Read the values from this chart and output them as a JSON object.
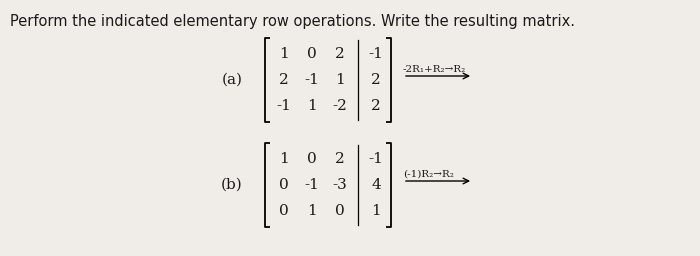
{
  "title": "Perform the indicated elementary row operations. Write the resulting matrix.",
  "title_fontsize": 10.5,
  "bg_color": "#f0ede8",
  "text_color": "#1a1a1a",
  "matrix_a": {
    "main": [
      [
        "1",
        "0",
        "2"
      ],
      [
        "2",
        "-1",
        "1"
      ],
      [
        "-1",
        "1",
        "-2"
      ]
    ],
    "aug": [
      [
        "-1"
      ],
      [
        "2"
      ],
      [
        "2"
      ]
    ],
    "label": "(a)",
    "op_text": "-2R₁+R₂→R₂"
  },
  "matrix_b": {
    "main": [
      [
        "1",
        "0",
        "2"
      ],
      [
        "0",
        "-1",
        "-3"
      ],
      [
        "0",
        "1",
        "0"
      ]
    ],
    "aug": [
      [
        "-1"
      ],
      [
        "4"
      ],
      [
        "1"
      ]
    ],
    "label": "(b)",
    "op_text": "(-1)R₂→R₂"
  }
}
